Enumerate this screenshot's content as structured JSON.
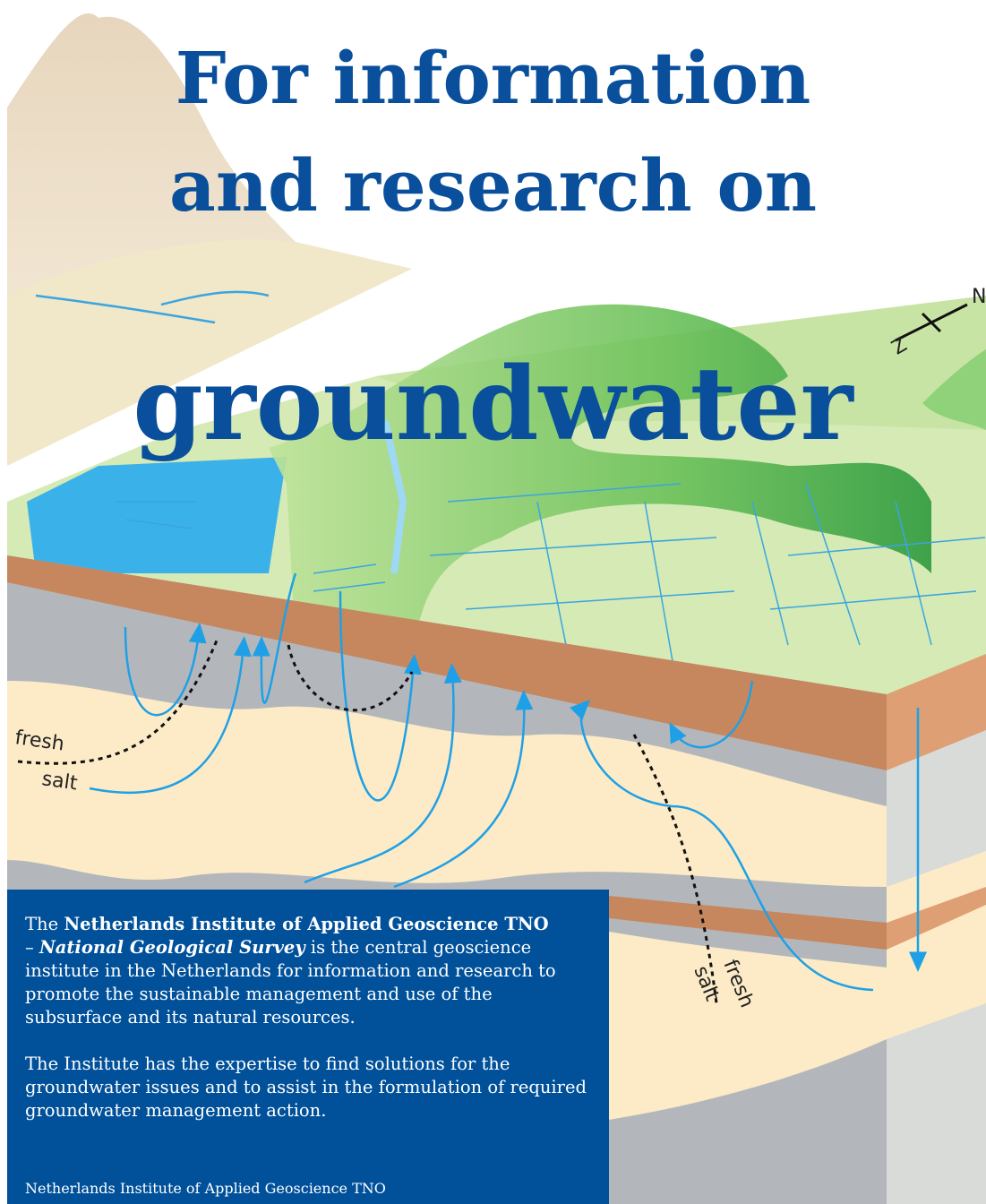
{
  "title": {
    "line1": "For information",
    "line2": "and research on",
    "line3": "groundwater"
  },
  "illustration": {
    "labels": {
      "fresh_left": "fresh",
      "salt_left": "salt",
      "fresh_right": "fresh",
      "salt_right": "salt"
    },
    "compass": {
      "north": "N",
      "south": "Z"
    }
  },
  "info_box": {
    "paragraph1": [
      "The ",
      "Netherlands Institute of Applied Geoscience TNO",
      "– ",
      "National Geological Survey",
      " is the central geoscience institute in the Netherlands for information and research to promote the sustainable management and use of the subsurface and its natural resources."
    ],
    "paragraph2": "The Institute has the expertise to find solutions for the groundwater issues and to assist in the formulation of required groundwater management action.",
    "footer": "Netherlands Institute of Applied Geoscience TNO"
  }
}
